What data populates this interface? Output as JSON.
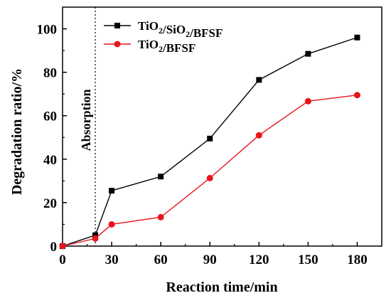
{
  "chart_data": {
    "type": "line",
    "xlabel": "Reaction time/min",
    "ylabel": "Degradation ratio/%",
    "xlim": [
      0,
      195
    ],
    "ylim": [
      0,
      110
    ],
    "xticks": [
      0,
      30,
      60,
      90,
      120,
      150,
      180
    ],
    "yticks": [
      0,
      20,
      40,
      60,
      80,
      100
    ],
    "x": [
      0,
      20,
      30,
      60,
      90,
      120,
      150,
      180
    ],
    "grid": false,
    "legend_position": "top-left",
    "series": [
      {
        "name": "TiO2/SiO2/BFSF",
        "label_parts": [
          {
            "t": "TiO",
            "sub": false
          },
          {
            "t": "2",
            "sub": true
          },
          {
            "t": "/SiO",
            "sub": false
          },
          {
            "t": "2",
            "sub": true
          },
          {
            "t": "/BFSF",
            "sub": false
          }
        ],
        "color": "#000000",
        "marker": "square",
        "values": [
          0,
          5,
          25.5,
          32,
          49.5,
          76.5,
          88.5,
          96
        ]
      },
      {
        "name": "TiO2/BFSF",
        "label_parts": [
          {
            "t": "TiO",
            "sub": false
          },
          {
            "t": "2",
            "sub": true
          },
          {
            "t": "/BFSF",
            "sub": false
          }
        ],
        "color": "#e8141b",
        "marker": "circle",
        "values": [
          0,
          3.5,
          10,
          13.3,
          31.3,
          51,
          66.7,
          69.5
        ]
      }
    ],
    "annotations": [
      {
        "text": "Absorption",
        "x": 20,
        "style": "dotted-vertical-line"
      }
    ]
  }
}
